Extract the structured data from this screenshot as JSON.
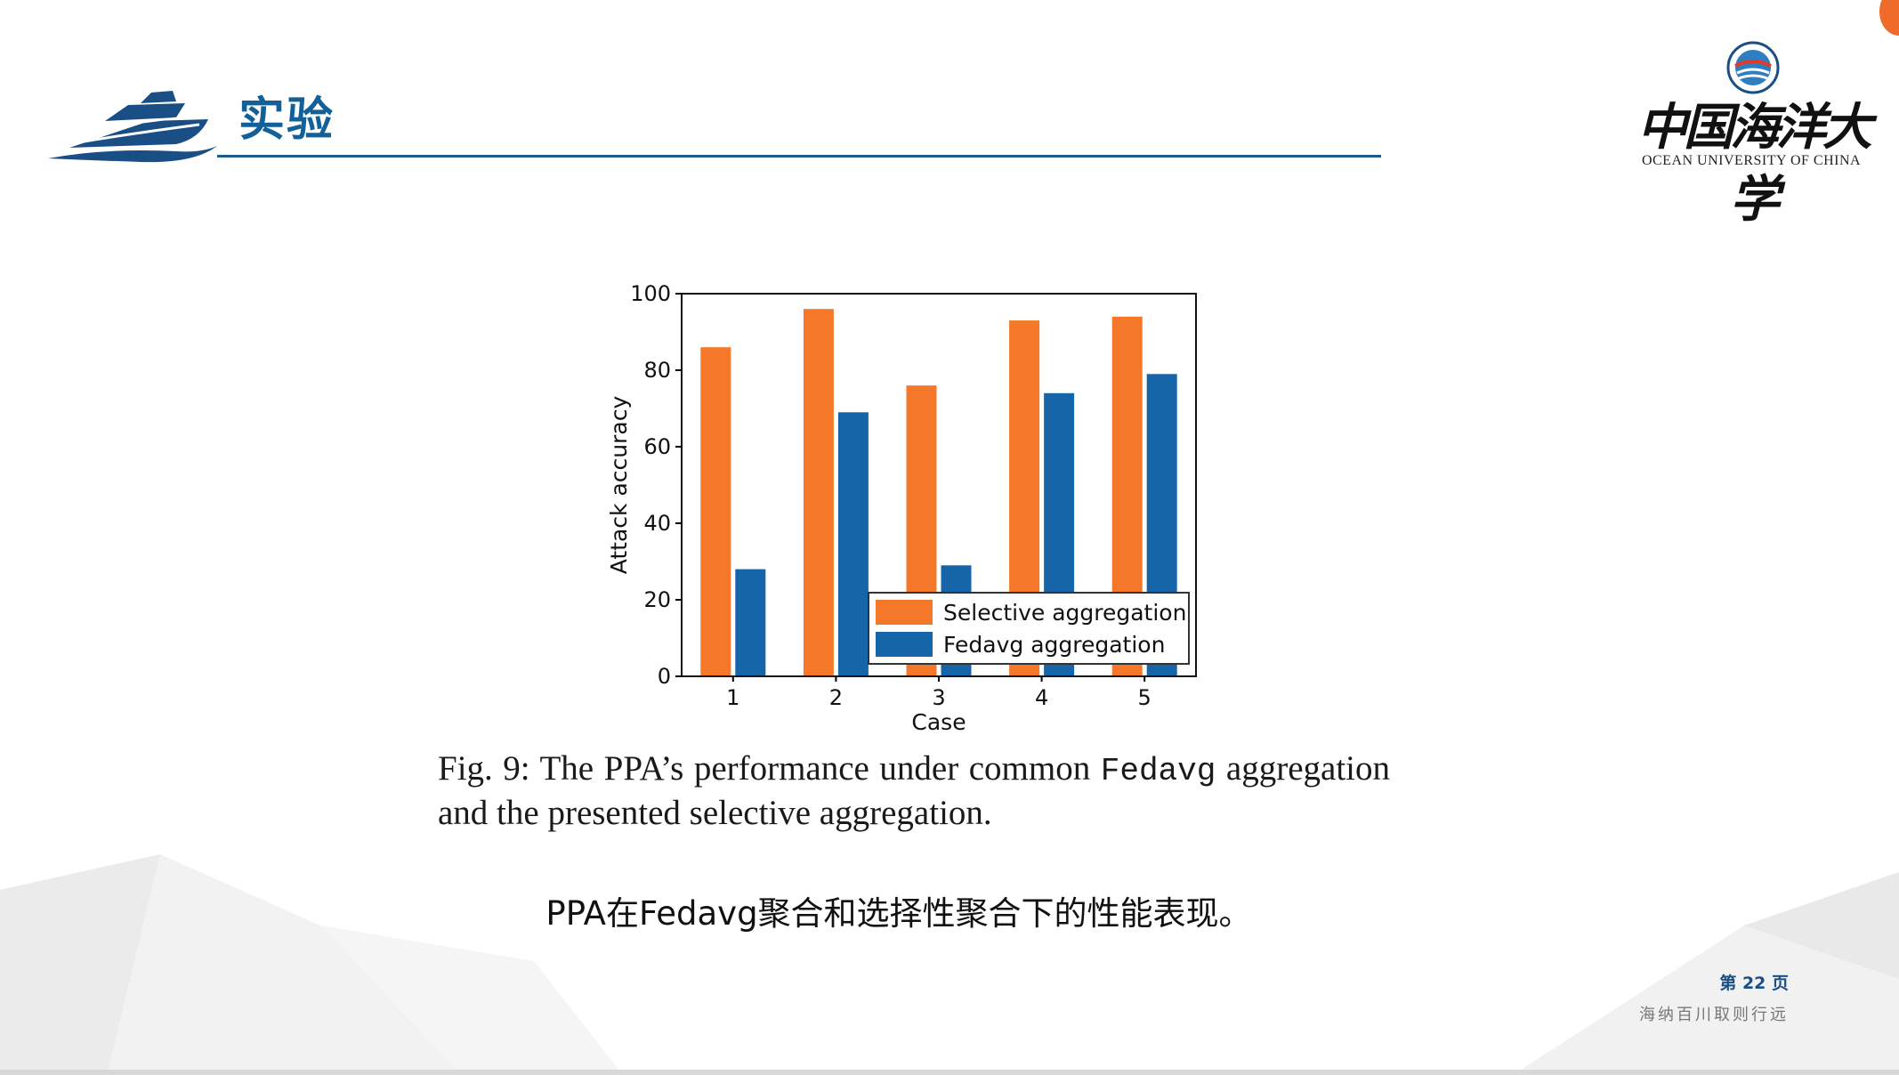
{
  "slide": {
    "title": "实验",
    "university_cn": "中国海洋大学",
    "university_en": "OCEAN UNIVERSITY OF CHINA",
    "page_number": "第 22 页",
    "motto": "海纳百川取则行远",
    "caption_cn": "PPA在Fedavg聚合和选择性聚合下的性能表现。"
  },
  "figure": {
    "caption_prefix": "Fig. 9: The PPA’s performance under common ",
    "caption_code": "Fedavg",
    "caption_suffix": " aggregation and the presented selective aggregation."
  },
  "colors": {
    "brand_blue": "#12609a",
    "series_selective": "#f5782a",
    "series_fedavg": "#1565a8"
  },
  "chart_data": {
    "type": "bar",
    "xlabel": "Case",
    "ylabel": "Attack accuracy",
    "ylim": [
      0,
      100
    ],
    "yticks": [
      0,
      20,
      40,
      60,
      80,
      100
    ],
    "categories": [
      "1",
      "2",
      "3",
      "4",
      "5"
    ],
    "series": [
      {
        "name": "Selective aggregation",
        "color": "#f5782a",
        "values": [
          86,
          96,
          76,
          93,
          94
        ]
      },
      {
        "name": "Fedavg aggregation",
        "color": "#1565a8",
        "values": [
          28,
          69,
          29,
          74,
          79
        ]
      }
    ],
    "legend_position": "bottom-right",
    "grid": false
  }
}
